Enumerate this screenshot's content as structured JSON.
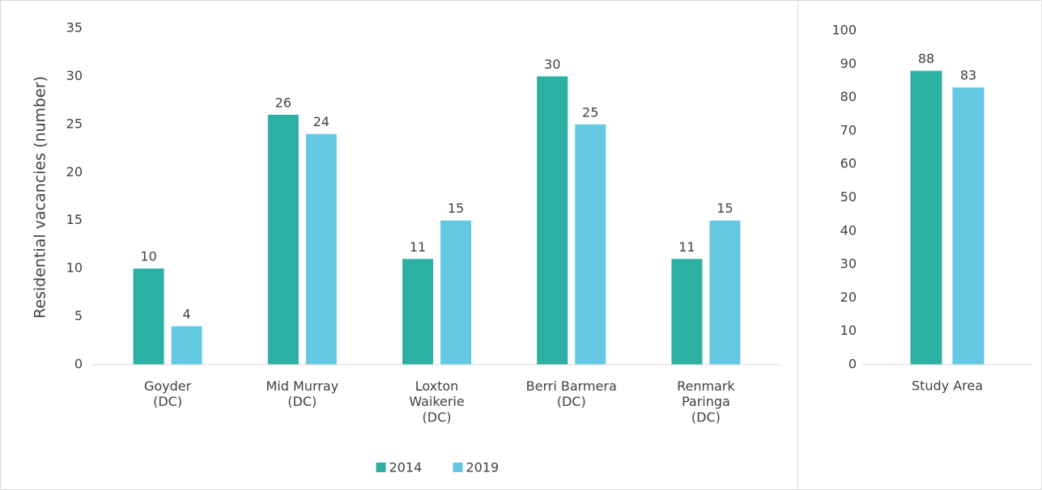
{
  "chart_data": [
    {
      "type": "bar",
      "y_label": "Residential vacancies  (number)",
      "categories": [
        "Goyder\n(DC)",
        "Mid Murray\n(DC)",
        "Loxton\nWaikerie\n(DC)",
        "Berri Barmera\n(DC)",
        "Renmark\nParinga\n(DC)"
      ],
      "series": [
        {
          "name": "2014",
          "color": "#2db0a4",
          "values": [
            10,
            26,
            11,
            30,
            11
          ]
        },
        {
          "name": "2019",
          "color": "#63c9e2",
          "values": [
            4,
            24,
            15,
            25,
            15
          ]
        }
      ],
      "ylim": [
        0,
        35
      ],
      "yticks": [
        0,
        5,
        10,
        15,
        20,
        25,
        30,
        35
      ],
      "grid": false,
      "legend": "bottom"
    },
    {
      "type": "bar",
      "categories": [
        "Study Area"
      ],
      "series": [
        {
          "color": "#2db0a4",
          "values": [
            88
          ]
        },
        {
          "color": "#63c9e2",
          "values": [
            83
          ]
        }
      ],
      "ylim": [
        0,
        100
      ],
      "yticks": [
        0,
        10,
        20,
        30,
        40,
        50,
        60,
        70,
        80,
        90,
        100
      ],
      "grid": false
    }
  ]
}
